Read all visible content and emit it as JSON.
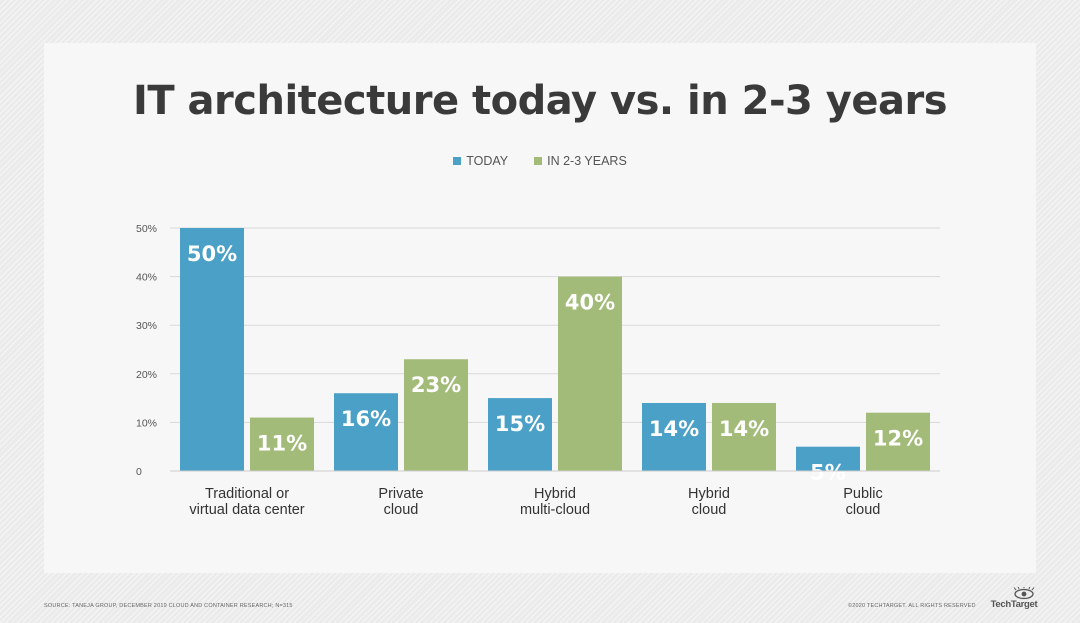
{
  "title": "IT architecture today vs. in 2-3 years",
  "legend": {
    "today": "TODAY",
    "future": "IN 2-3 YEARS"
  },
  "colors": {
    "today": "#4aa0c6",
    "future": "#a3bb79",
    "grid": "#d9d9d9",
    "axis_text": "#555555",
    "category_text": "#333333",
    "bar_label": "#ffffff"
  },
  "chart_data": {
    "type": "bar",
    "categories": [
      [
        "Traditional or",
        "virtual data center"
      ],
      [
        "Private",
        "cloud"
      ],
      [
        "Hybrid",
        "multi-cloud"
      ],
      [
        "Hybrid",
        "cloud"
      ],
      [
        "Public",
        "cloud"
      ]
    ],
    "series": [
      {
        "name": "TODAY",
        "values": [
          50,
          16,
          15,
          14,
          5
        ],
        "labels": [
          "50%",
          "16%",
          "15%",
          "14%",
          "5%"
        ]
      },
      {
        "name": "IN 2-3 YEARS",
        "values": [
          11,
          23,
          40,
          14,
          12
        ],
        "labels": [
          "11%",
          "23%",
          "40%",
          "14%",
          "12%"
        ]
      }
    ],
    "yticks": [
      "0",
      "10%",
      "20%",
      "30%",
      "40%",
      "50%"
    ],
    "ylim": [
      0,
      50
    ],
    "grid": true,
    "legend_position": "top-center"
  },
  "footer": {
    "source": "SOURCE: TANEJA GROUP, DECEMBER 2019 CLOUD AND CONTAINER RESEARCH; N=315",
    "copyright": "©2020 TECHTARGET. ALL RIGHTS RESERVED",
    "brand": "TechTarget"
  }
}
